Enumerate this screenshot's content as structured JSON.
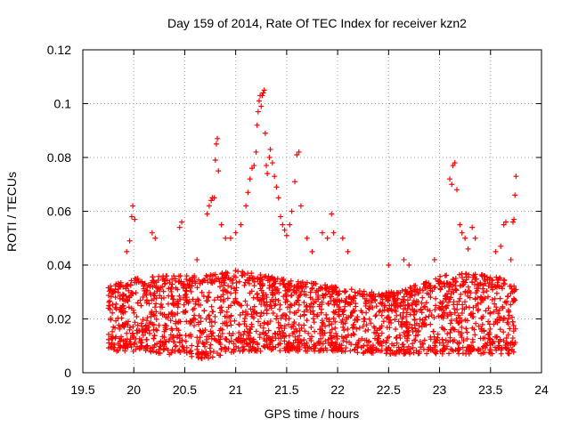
{
  "chart_data": {
    "type": "scatter",
    "title": "Day 159 of 2014, Rate Of TEC Index for receiver kzn2",
    "xlabel": "GPS time / hours",
    "ylabel": "ROTI / TECUs",
    "xlim": [
      19.5,
      24
    ],
    "ylim": [
      0,
      0.12
    ],
    "xticks": [
      19.5,
      20,
      20.5,
      21,
      21.5,
      22,
      22.5,
      23,
      23.5,
      24
    ],
    "xtick_labels": [
      "19.5",
      "20",
      "20.5",
      "21",
      "21.5",
      "22",
      "22.5",
      "23",
      "23.5",
      "24"
    ],
    "yticks": [
      0,
      0.02,
      0.04,
      0.06,
      0.08,
      0.1,
      0.12
    ],
    "ytick_labels": [
      "0",
      "0.02",
      "0.04",
      "0.06",
      "0.08",
      "0.1",
      "0.12"
    ],
    "grid": true,
    "marker": "plus",
    "marker_color": "#ff0000",
    "series": [
      {
        "name": "ROTI",
        "x_start": 19.75,
        "x_end": 23.75,
        "baseline": [
          [
            19.75,
            0.008,
            0.032
          ],
          [
            20.0,
            0.008,
            0.035
          ],
          [
            20.3,
            0.007,
            0.036
          ],
          [
            20.5,
            0.006,
            0.036
          ],
          [
            20.7,
            0.005,
            0.036
          ],
          [
            21.0,
            0.008,
            0.038
          ],
          [
            21.3,
            0.008,
            0.036
          ],
          [
            21.6,
            0.008,
            0.034
          ],
          [
            22.0,
            0.008,
            0.032
          ],
          [
            22.3,
            0.007,
            0.03
          ],
          [
            22.6,
            0.007,
            0.03
          ],
          [
            23.0,
            0.007,
            0.036
          ],
          [
            23.3,
            0.007,
            0.037
          ],
          [
            23.5,
            0.007,
            0.036
          ],
          [
            23.75,
            0.007,
            0.034
          ]
        ],
        "outliers": [
          [
            19.93,
            0.045
          ],
          [
            19.96,
            0.049
          ],
          [
            19.98,
            0.058
          ],
          [
            19.99,
            0.062
          ],
          [
            20.01,
            0.057
          ],
          [
            20.18,
            0.052
          ],
          [
            20.21,
            0.05
          ],
          [
            20.45,
            0.054
          ],
          [
            20.47,
            0.056
          ],
          [
            20.62,
            0.042
          ],
          [
            20.72,
            0.059
          ],
          [
            20.74,
            0.062
          ],
          [
            20.76,
            0.064
          ],
          [
            20.77,
            0.065
          ],
          [
            20.79,
            0.065
          ],
          [
            20.8,
            0.079
          ],
          [
            20.81,
            0.085
          ],
          [
            20.82,
            0.087
          ],
          [
            20.83,
            0.075
          ],
          [
            20.86,
            0.055
          ],
          [
            20.9,
            0.05
          ],
          [
            20.95,
            0.05
          ],
          [
            21.0,
            0.052
          ],
          [
            21.05,
            0.055
          ],
          [
            21.1,
            0.062
          ],
          [
            21.12,
            0.067
          ],
          [
            21.14,
            0.072
          ],
          [
            21.16,
            0.076
          ],
          [
            21.18,
            0.077
          ],
          [
            21.2,
            0.082
          ],
          [
            21.21,
            0.092
          ],
          [
            21.22,
            0.097
          ],
          [
            21.23,
            0.101
          ],
          [
            21.24,
            0.103
          ],
          [
            21.25,
            0.099
          ],
          [
            21.26,
            0.103
          ],
          [
            21.27,
            0.104
          ],
          [
            21.28,
            0.105
          ],
          [
            21.29,
            0.089
          ],
          [
            21.3,
            0.077
          ],
          [
            21.31,
            0.074
          ],
          [
            21.33,
            0.08
          ],
          [
            21.34,
            0.083
          ],
          [
            21.36,
            0.078
          ],
          [
            21.38,
            0.073
          ],
          [
            21.4,
            0.069
          ],
          [
            21.42,
            0.065
          ],
          [
            21.44,
            0.058
          ],
          [
            21.46,
            0.055
          ],
          [
            21.48,
            0.053
          ],
          [
            21.5,
            0.051
          ],
          [
            21.53,
            0.055
          ],
          [
            21.55,
            0.06
          ],
          [
            21.58,
            0.071
          ],
          [
            21.6,
            0.081
          ],
          [
            21.62,
            0.082
          ],
          [
            21.64,
            0.062
          ],
          [
            21.7,
            0.05
          ],
          [
            21.75,
            0.045
          ],
          [
            21.85,
            0.052
          ],
          [
            21.9,
            0.05
          ],
          [
            21.94,
            0.059
          ],
          [
            21.96,
            0.052
          ],
          [
            22.05,
            0.05
          ],
          [
            22.1,
            0.045
          ],
          [
            22.5,
            0.04
          ],
          [
            22.65,
            0.042
          ],
          [
            22.7,
            0.04
          ],
          [
            22.95,
            0.042
          ],
          [
            23.1,
            0.072
          ],
          [
            23.12,
            0.07
          ],
          [
            23.13,
            0.077
          ],
          [
            23.15,
            0.078
          ],
          [
            23.17,
            0.068
          ],
          [
            23.2,
            0.055
          ],
          [
            23.22,
            0.052
          ],
          [
            23.25,
            0.05
          ],
          [
            23.28,
            0.046
          ],
          [
            23.32,
            0.054
          ],
          [
            23.35,
            0.05
          ],
          [
            23.55,
            0.045
          ],
          [
            23.6,
            0.047
          ],
          [
            23.63,
            0.055
          ],
          [
            23.65,
            0.056
          ],
          [
            23.7,
            0.042
          ],
          [
            23.72,
            0.056
          ],
          [
            23.73,
            0.057
          ],
          [
            23.74,
            0.066
          ],
          [
            23.75,
            0.073
          ]
        ],
        "samples_per_hour": 560
      }
    ]
  }
}
